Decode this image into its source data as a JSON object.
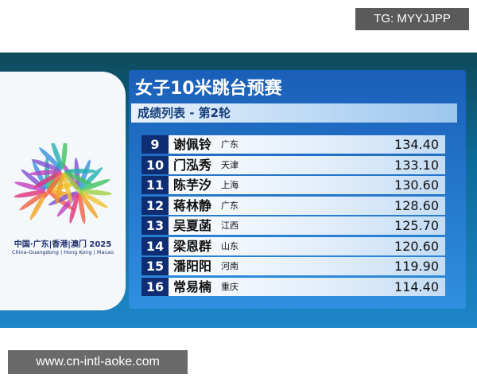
{
  "watermark_top": "TG: MYYJJPP",
  "watermark_bottom": "www.cn-intl-aoke.com",
  "logo": {
    "line1": "中国·广东|香港|澳门 2025",
    "line2": "China-Guangdong | Hong Kong | Macao"
  },
  "header": {
    "title": "女子10米跳台预赛",
    "subtitle": "成绩列表 - 第2轮"
  },
  "table": {
    "rows": [
      [
        "9",
        "谢佩铃",
        "广东",
        "134.40"
      ],
      [
        "10",
        "门泓秀",
        "天津",
        "133.10"
      ],
      [
        "11",
        "陈芋汐",
        "上海",
        "130.60"
      ],
      [
        "12",
        "蒋林静",
        "广东",
        "128.60"
      ],
      [
        "13",
        "吴夏菡",
        "江西",
        "125.70"
      ],
      [
        "14",
        "梁恩群",
        "山东",
        "120.60"
      ],
      [
        "15",
        "潘阳阳",
        "河南",
        "119.90"
      ],
      [
        "16",
        "常易楠",
        "重庆",
        "114.40"
      ]
    ]
  }
}
